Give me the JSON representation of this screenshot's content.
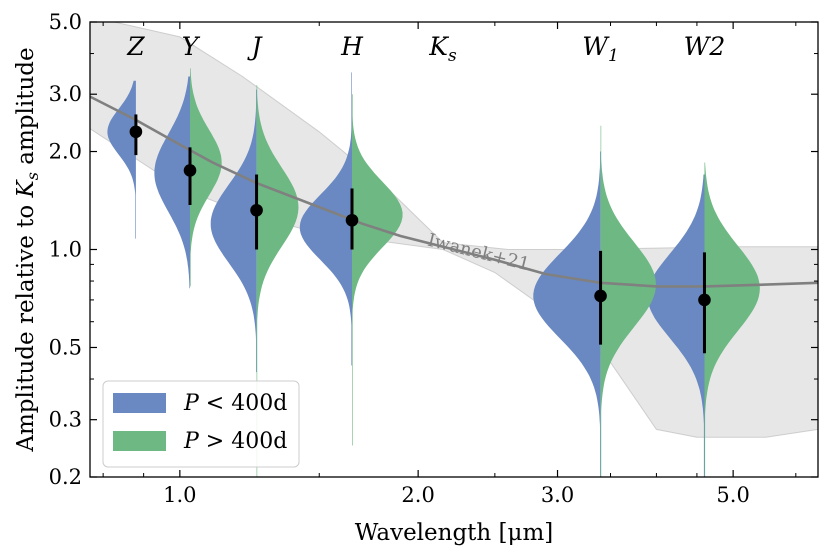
{
  "chart_data": {
    "type": "violin",
    "xlabel": "Wavelength [μm]",
    "ylabel": "Amplitude relative to Ks amplitude",
    "xscale": "log",
    "yscale": "log",
    "xlim": [
      0.77,
      6.4
    ],
    "ylim": [
      0.2,
      5.0
    ],
    "x_ticks": [
      {
        "value": 1.0,
        "label": "1.0"
      },
      {
        "value": 2.0,
        "label": "2.0"
      },
      {
        "value": 3.0,
        "label": "3.0"
      },
      {
        "value": 5.0,
        "label": "5.0"
      }
    ],
    "y_ticks": [
      {
        "value": 0.2,
        "label": "0.2"
      },
      {
        "value": 0.3,
        "label": "0.3"
      },
      {
        "value": 0.5,
        "label": "0.5"
      },
      {
        "value": 1.0,
        "label": "1.0"
      },
      {
        "value": 2.0,
        "label": "2.0"
      },
      {
        "value": 3.0,
        "label": "3.0"
      },
      {
        "value": 5.0,
        "label": "5.0"
      }
    ],
    "bands": [
      {
        "name": "Z",
        "base": "Z",
        "sub": "",
        "wavelength": 0.88
      },
      {
        "name": "Y",
        "base": "Y",
        "sub": "",
        "wavelength": 1.03
      },
      {
        "name": "J",
        "base": "J",
        "sub": "",
        "wavelength": 1.25
      },
      {
        "name": "H",
        "base": "H",
        "sub": "",
        "wavelength": 1.65
      },
      {
        "name": "Ks",
        "base": "K",
        "sub": "s",
        "wavelength": 2.15
      },
      {
        "name": "W1",
        "base": "W",
        "sub": "1",
        "wavelength": 3.4
      },
      {
        "name": "W2",
        "base": "W2",
        "sub": "",
        "wavelength": 4.6
      }
    ],
    "legend": {
      "position": "lower-left",
      "entries": [
        {
          "label_prefix": "P",
          "label_rest": " < 400d",
          "color": "#6a89c2",
          "series": "short"
        },
        {
          "label_prefix": "P",
          "label_rest": " > 400d",
          "color": "#6db883",
          "series": "long"
        }
      ]
    },
    "series": [
      {
        "name": "P < 400d",
        "side": "left",
        "color": "#6a89c2",
        "violins": [
          {
            "band": "Z",
            "x": 0.88,
            "ymin": 1.08,
            "ymax": 3.3,
            "mode": 2.3,
            "half_width_dex": 0.036,
            "sigma_dex": 0.07
          },
          {
            "band": "Y",
            "x": 1.03,
            "ymin": 0.76,
            "ymax": 3.4,
            "mode": 1.72,
            "half_width_dex": 0.045,
            "sigma_dex": 0.12
          },
          {
            "band": "J",
            "x": 1.25,
            "ymin": 0.42,
            "ymax": 3.1,
            "mode": 1.2,
            "half_width_dex": 0.058,
            "sigma_dex": 0.12
          },
          {
            "band": "H",
            "x": 1.65,
            "ymin": 0.44,
            "ymax": 3.5,
            "mode": 1.17,
            "half_width_dex": 0.066,
            "sigma_dex": 0.1
          },
          {
            "band": "W1",
            "x": 3.4,
            "ymin": 0.2,
            "ymax": 2.0,
            "mode": 0.72,
            "half_width_dex": 0.085,
            "sigma_dex": 0.13
          },
          {
            "band": "W2",
            "x": 4.6,
            "ymin": 0.2,
            "ymax": 1.7,
            "mode": 0.72,
            "half_width_dex": 0.072,
            "sigma_dex": 0.13
          }
        ]
      },
      {
        "name": "P > 400d",
        "side": "right",
        "color": "#6db883",
        "violins": [
          {
            "band": "Y",
            "x": 1.03,
            "ymin": 0.77,
            "ymax": 3.6,
            "mode": 1.85,
            "half_width_dex": 0.04,
            "sigma_dex": 0.1
          },
          {
            "band": "J",
            "x": 1.25,
            "ymin": 0.2,
            "ymax": 3.2,
            "mode": 1.35,
            "half_width_dex": 0.053,
            "sigma_dex": 0.12
          },
          {
            "band": "H",
            "x": 1.65,
            "ymin": 0.25,
            "ymax": 3.0,
            "mode": 1.28,
            "half_width_dex": 0.064,
            "sigma_dex": 0.1
          },
          {
            "band": "W1",
            "x": 3.4,
            "ymin": 0.2,
            "ymax": 2.4,
            "mode": 0.78,
            "half_width_dex": 0.07,
            "sigma_dex": 0.13
          },
          {
            "band": "W2",
            "x": 4.6,
            "ymin": 0.2,
            "ymax": 1.85,
            "mode": 0.76,
            "half_width_dex": 0.07,
            "sigma_dex": 0.13
          }
        ]
      }
    ],
    "medians": [
      {
        "band": "Z",
        "x": 0.88,
        "y": 2.3,
        "err_low": 1.95,
        "err_high": 2.6
      },
      {
        "band": "Y",
        "x": 1.03,
        "y": 1.75,
        "err_low": 1.37,
        "err_high": 2.06
      },
      {
        "band": "J",
        "x": 1.25,
        "y": 1.32,
        "err_low": 1.0,
        "err_high": 1.7
      },
      {
        "band": "H",
        "x": 1.65,
        "y": 1.23,
        "err_low": 1.0,
        "err_high": 1.54
      },
      {
        "band": "W1",
        "x": 3.4,
        "y": 0.72,
        "err_low": 0.51,
        "err_high": 0.99
      },
      {
        "band": "W2",
        "x": 4.6,
        "y": 0.7,
        "err_low": 0.48,
        "err_high": 0.98
      }
    ],
    "reference_curve": {
      "label": "Iwanek+21",
      "color": "#808080",
      "points": [
        [
          0.77,
          2.95
        ],
        [
          0.88,
          2.5
        ],
        [
          1.0,
          2.1
        ],
        [
          1.1,
          1.85
        ],
        [
          1.25,
          1.6
        ],
        [
          1.5,
          1.35
        ],
        [
          1.7,
          1.2
        ],
        [
          1.9,
          1.1
        ],
        [
          2.15,
          1.02
        ],
        [
          2.5,
          0.93
        ],
        [
          2.9,
          0.84
        ],
        [
          3.4,
          0.79
        ],
        [
          4.0,
          0.77
        ],
        [
          4.6,
          0.77
        ],
        [
          5.5,
          0.78
        ],
        [
          6.4,
          0.79
        ]
      ],
      "band_upper": [
        [
          0.77,
          5.2
        ],
        [
          1.0,
          4.5
        ],
        [
          1.2,
          3.4
        ],
        [
          1.5,
          2.3
        ],
        [
          1.8,
          1.6
        ],
        [
          2.15,
          1.05
        ],
        [
          2.6,
          1.0
        ],
        [
          3.2,
          1.0
        ],
        [
          4.0,
          1.01
        ],
        [
          5.0,
          1.02
        ],
        [
          6.4,
          1.02
        ]
      ],
      "band_lower": [
        [
          0.77,
          2.35
        ],
        [
          1.0,
          1.55
        ],
        [
          1.2,
          1.3
        ],
        [
          1.5,
          1.12
        ],
        [
          1.8,
          1.06
        ],
        [
          2.15,
          1.0
        ],
        [
          2.5,
          0.85
        ],
        [
          3.0,
          0.62
        ],
        [
          3.5,
          0.45
        ],
        [
          4.0,
          0.28
        ],
        [
          4.5,
          0.265
        ],
        [
          5.5,
          0.265
        ],
        [
          6.4,
          0.28
        ]
      ]
    }
  }
}
